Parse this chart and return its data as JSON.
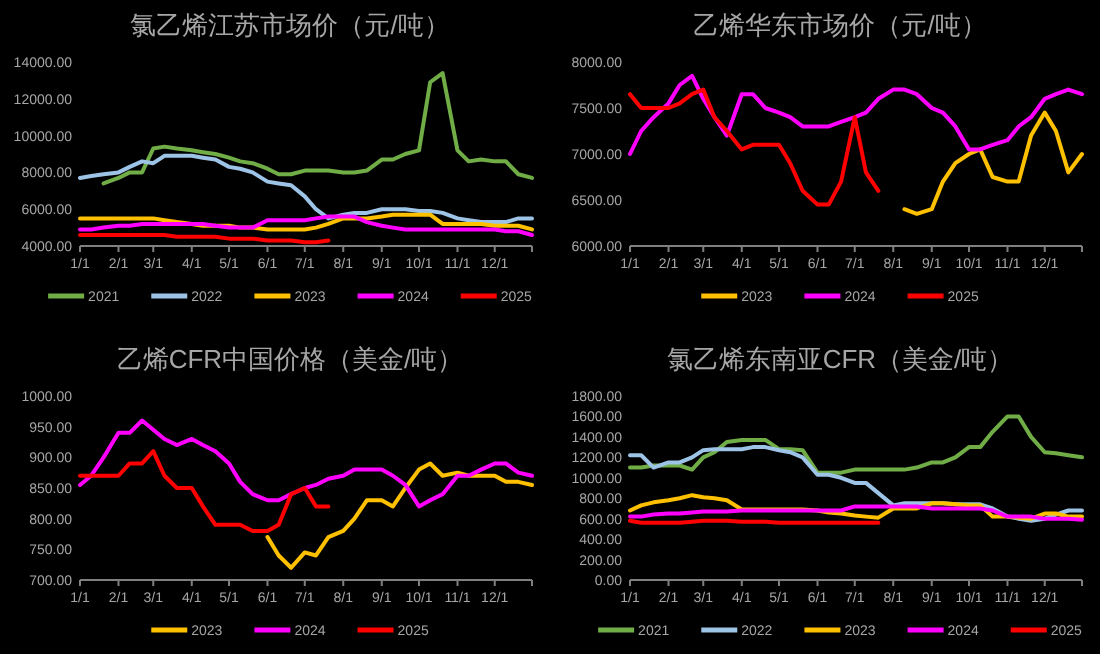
{
  "chart_data": [
    {
      "type": "line",
      "title": "氯乙烯江苏市场价（元/吨）",
      "legend": "bottom",
      "x": [
        "--01-01",
        "--01-10",
        "--01-20",
        "--02-01",
        "--02-10",
        "--02-20",
        "--03-01",
        "--03-10",
        "--03-20",
        "--04-01",
        "--04-10",
        "--04-20",
        "--05-01",
        "--05-10",
        "--05-20",
        "--06-01",
        "--06-10",
        "--06-20",
        "--07-01",
        "--07-10",
        "--07-20",
        "--08-01",
        "--08-10",
        "--08-20",
        "--09-01",
        "--09-10",
        "--09-20",
        "--10-01",
        "--10-10",
        "--10-20",
        "--11-01",
        "--11-10",
        "--11-20",
        "--12-01",
        "--12-10",
        "--12-20",
        "--12-31"
      ],
      "xlim": [
        "--01-01",
        "--12-31"
      ],
      "xticks": [
        {
          "value": "--01-01",
          "label": "1/1"
        },
        {
          "value": "--02-01",
          "label": "2/1"
        },
        {
          "value": "--03-01",
          "label": "3/1"
        },
        {
          "value": "--04-01",
          "label": "4/1"
        },
        {
          "value": "--05-01",
          "label": "5/1"
        },
        {
          "value": "--06-01",
          "label": "6/1"
        },
        {
          "value": "--07-01",
          "label": "7/1"
        },
        {
          "value": "--08-01",
          "label": "8/1"
        },
        {
          "value": "--09-01",
          "label": "9/1"
        },
        {
          "value": "--10-01",
          "label": "10/1"
        },
        {
          "value": "--11-01",
          "label": "11/1"
        },
        {
          "value": "--12-01",
          "label": "12/1"
        }
      ],
      "ylim": [
        4000,
        14000
      ],
      "yticks": [
        {
          "value": 4000,
          "label": "4000.00"
        },
        {
          "value": 6000,
          "label": "6000.00"
        },
        {
          "value": 8000,
          "label": "8000.00"
        },
        {
          "value": 10000,
          "label": "10000.00"
        },
        {
          "value": 12000,
          "label": "12000.00"
        },
        {
          "value": 14000,
          "label": "14000.00"
        }
      ],
      "series": [
        {
          "name": "2021",
          "color": "#70ad47",
          "values": [
            null,
            null,
            7400,
            7700,
            8000,
            8000,
            9300,
            9400,
            9300,
            9200,
            9100,
            9000,
            8800,
            8600,
            8500,
            8200,
            7900,
            7900,
            8100,
            8100,
            8100,
            8000,
            8000,
            8100,
            8700,
            8700,
            9000,
            9200,
            12900,
            13400,
            9200,
            8600,
            8700,
            8600,
            8600,
            7900,
            7700
          ]
        },
        {
          "name": "2022",
          "color": "#9dc3e6",
          "values": [
            7700,
            7800,
            7900,
            8000,
            8300,
            8600,
            8500,
            8900,
            8900,
            8900,
            8800,
            8700,
            8300,
            8200,
            8000,
            7500,
            7400,
            7300,
            6700,
            6000,
            5500,
            5700,
            5800,
            5800,
            6000,
            6000,
            6000,
            5900,
            5900,
            5800,
            5500,
            5400,
            5300,
            5300,
            5300,
            5500,
            5500
          ]
        },
        {
          "name": "2023",
          "color": "#ffc000",
          "values": [
            5500,
            5500,
            5500,
            5500,
            5500,
            5500,
            5500,
            5400,
            5300,
            5200,
            5100,
            5100,
            5100,
            5000,
            5000,
            4900,
            4900,
            4900,
            4900,
            5000,
            5200,
            5500,
            5500,
            5500,
            5600,
            5700,
            5700,
            5700,
            5700,
            5200,
            5200,
            5200,
            5200,
            5100,
            5100,
            5100,
            4900
          ]
        },
        {
          "name": "2024",
          "color": "#ff00ff",
          "values": [
            4900,
            4900,
            5000,
            5100,
            5100,
            5200,
            5200,
            5200,
            5200,
            5200,
            5200,
            5100,
            5000,
            5000,
            5000,
            5400,
            5400,
            5400,
            5400,
            5500,
            5600,
            5600,
            5600,
            5300,
            5100,
            5000,
            4900,
            4900,
            4900,
            4900,
            4900,
            4900,
            4900,
            4900,
            4800,
            4800,
            4600
          ]
        },
        {
          "name": "2025",
          "color": "#ff0000",
          "values": [
            4600,
            4600,
            4600,
            4600,
            4600,
            4600,
            4600,
            4600,
            4500,
            4500,
            4500,
            4500,
            4400,
            4400,
            4400,
            4300,
            4300,
            4300,
            4200,
            4200,
            4300,
            null,
            null,
            null,
            null,
            null,
            null,
            null,
            null,
            null,
            null,
            null,
            null,
            null,
            null,
            null,
            null
          ]
        }
      ]
    },
    {
      "type": "line",
      "title": "乙烯华东市场价（元/吨）",
      "legend": "bottom",
      "x": [
        "--01-01",
        "--01-10",
        "--01-20",
        "--02-01",
        "--02-10",
        "--02-20",
        "--03-01",
        "--03-10",
        "--03-20",
        "--04-01",
        "--04-10",
        "--04-20",
        "--05-01",
        "--05-10",
        "--05-20",
        "--06-01",
        "--06-10",
        "--06-20",
        "--07-01",
        "--07-10",
        "--07-20",
        "--08-01",
        "--08-10",
        "--08-20",
        "--09-01",
        "--09-10",
        "--09-20",
        "--10-01",
        "--10-10",
        "--10-20",
        "--11-01",
        "--11-10",
        "--11-20",
        "--12-01",
        "--12-10",
        "--12-20",
        "--12-31"
      ],
      "xlim": [
        "--01-01",
        "--12-31"
      ],
      "xticks": [
        {
          "value": "--01-01",
          "label": "1/1"
        },
        {
          "value": "--02-01",
          "label": "2/1"
        },
        {
          "value": "--03-01",
          "label": "3/1"
        },
        {
          "value": "--04-01",
          "label": "4/1"
        },
        {
          "value": "--05-01",
          "label": "5/1"
        },
        {
          "value": "--06-01",
          "label": "6/1"
        },
        {
          "value": "--07-01",
          "label": "7/1"
        },
        {
          "value": "--08-01",
          "label": "8/1"
        },
        {
          "value": "--09-01",
          "label": "9/1"
        },
        {
          "value": "--10-01",
          "label": "10/1"
        },
        {
          "value": "--11-01",
          "label": "11/1"
        },
        {
          "value": "--12-01",
          "label": "12/1"
        }
      ],
      "ylim": [
        6000,
        8000
      ],
      "yticks": [
        {
          "value": 6000,
          "label": "6000.00"
        },
        {
          "value": 6500,
          "label": "6500.00"
        },
        {
          "value": 7000,
          "label": "7000.00"
        },
        {
          "value": 7500,
          "label": "7500.00"
        },
        {
          "value": 8000,
          "label": "8000.00"
        }
      ],
      "series": [
        {
          "name": "2023",
          "color": "#ffc000",
          "values": [
            null,
            null,
            null,
            null,
            null,
            null,
            null,
            null,
            null,
            null,
            null,
            null,
            null,
            null,
            null,
            null,
            null,
            null,
            null,
            null,
            null,
            null,
            6400,
            6350,
            6400,
            6700,
            6900,
            7000,
            7050,
            6750,
            6700,
            6700,
            7200,
            7450,
            7250,
            6800,
            7000
          ]
        },
        {
          "name": "2024",
          "color": "#ff00ff",
          "values": [
            7000,
            7250,
            7400,
            7550,
            7750,
            7850,
            7600,
            7400,
            7200,
            7650,
            7650,
            7500,
            7450,
            7400,
            7300,
            7300,
            7300,
            7350,
            7400,
            7450,
            7600,
            7700,
            7700,
            7650,
            7500,
            7450,
            7300,
            7050,
            7050,
            7100,
            7150,
            7300,
            7400,
            7600,
            7650,
            7700,
            7650
          ]
        },
        {
          "name": "2025",
          "color": "#ff0000",
          "values": [
            7650,
            7500,
            7500,
            7500,
            7550,
            7650,
            7700,
            7400,
            7250,
            7050,
            7100,
            7100,
            7100,
            6900,
            6600,
            6450,
            6450,
            6700,
            7400,
            6800,
            6600,
            null,
            null,
            null,
            null,
            null,
            null,
            null,
            null,
            null,
            null,
            null,
            null,
            null,
            null,
            null,
            null
          ]
        }
      ]
    },
    {
      "type": "line",
      "title": "乙烯CFR中国价格（美金/吨）",
      "legend": "bottom",
      "x": [
        "--01-01",
        "--01-10",
        "--01-20",
        "--02-01",
        "--02-10",
        "--02-20",
        "--03-01",
        "--03-10",
        "--03-20",
        "--04-01",
        "--04-10",
        "--04-20",
        "--05-01",
        "--05-10",
        "--05-20",
        "--06-01",
        "--06-10",
        "--06-20",
        "--07-01",
        "--07-10",
        "--07-20",
        "--08-01",
        "--08-10",
        "--08-20",
        "--09-01",
        "--09-10",
        "--09-20",
        "--10-01",
        "--10-10",
        "--10-20",
        "--11-01",
        "--11-10",
        "--11-20",
        "--12-01",
        "--12-10",
        "--12-20",
        "--12-31"
      ],
      "xlim": [
        "--01-01",
        "--12-31"
      ],
      "xticks": [
        {
          "value": "--01-01",
          "label": "1/1"
        },
        {
          "value": "--02-01",
          "label": "2/1"
        },
        {
          "value": "--03-01",
          "label": "3/1"
        },
        {
          "value": "--04-01",
          "label": "4/1"
        },
        {
          "value": "--05-01",
          "label": "5/1"
        },
        {
          "value": "--06-01",
          "label": "6/1"
        },
        {
          "value": "--07-01",
          "label": "7/1"
        },
        {
          "value": "--08-01",
          "label": "8/1"
        },
        {
          "value": "--09-01",
          "label": "9/1"
        },
        {
          "value": "--10-01",
          "label": "10/1"
        },
        {
          "value": "--11-01",
          "label": "11/1"
        },
        {
          "value": "--12-01",
          "label": "12/1"
        }
      ],
      "ylim": [
        700,
        1000
      ],
      "yticks": [
        {
          "value": 700,
          "label": "700.00"
        },
        {
          "value": 750,
          "label": "750.00"
        },
        {
          "value": 800,
          "label": "800.00"
        },
        {
          "value": 850,
          "label": "850.00"
        },
        {
          "value": 900,
          "label": "900.00"
        },
        {
          "value": 950,
          "label": "950.00"
        },
        {
          "value": 1000,
          "label": "1000.00"
        }
      ],
      "series": [
        {
          "name": "2023",
          "color": "#ffc000",
          "values": [
            null,
            null,
            null,
            null,
            null,
            null,
            null,
            null,
            null,
            null,
            null,
            null,
            null,
            null,
            null,
            770,
            740,
            720,
            745,
            740,
            770,
            780,
            800,
            830,
            830,
            820,
            850,
            880,
            890,
            870,
            875,
            870,
            870,
            870,
            860,
            860,
            855
          ]
        },
        {
          "name": "2024",
          "color": "#ff00ff",
          "values": [
            855,
            870,
            900,
            940,
            940,
            960,
            945,
            930,
            920,
            930,
            920,
            910,
            890,
            860,
            840,
            830,
            830,
            840,
            850,
            855,
            865,
            870,
            880,
            880,
            880,
            870,
            855,
            820,
            830,
            840,
            870,
            870,
            880,
            890,
            890,
            875,
            870
          ]
        },
        {
          "name": "2025",
          "color": "#ff0000",
          "values": [
            870,
            870,
            870,
            870,
            890,
            890,
            910,
            870,
            850,
            850,
            820,
            790,
            790,
            790,
            780,
            780,
            790,
            840,
            850,
            820,
            820,
            null,
            null,
            null,
            null,
            null,
            null,
            null,
            null,
            null,
            null,
            null,
            null,
            null,
            null,
            null,
            null
          ]
        }
      ]
    },
    {
      "type": "line",
      "title": "氯乙烯东南亚CFR（美金/吨）",
      "legend": "bottom",
      "x": [
        "--01-01",
        "--01-10",
        "--01-20",
        "--02-01",
        "--02-10",
        "--02-20",
        "--03-01",
        "--03-10",
        "--03-20",
        "--04-01",
        "--04-10",
        "--04-20",
        "--05-01",
        "--05-10",
        "--05-20",
        "--06-01",
        "--06-10",
        "--06-20",
        "--07-01",
        "--07-10",
        "--07-20",
        "--08-01",
        "--08-10",
        "--08-20",
        "--09-01",
        "--09-10",
        "--09-20",
        "--10-01",
        "--10-10",
        "--10-20",
        "--11-01",
        "--11-10",
        "--11-20",
        "--12-01",
        "--12-10",
        "--12-20",
        "--12-31"
      ],
      "xlim": [
        "--01-01",
        "--12-31"
      ],
      "xticks": [
        {
          "value": "--01-01",
          "label": "1/1"
        },
        {
          "value": "--02-01",
          "label": "2/1"
        },
        {
          "value": "--03-01",
          "label": "3/1"
        },
        {
          "value": "--04-01",
          "label": "4/1"
        },
        {
          "value": "--05-01",
          "label": "5/1"
        },
        {
          "value": "--06-01",
          "label": "6/1"
        },
        {
          "value": "--07-01",
          "label": "7/1"
        },
        {
          "value": "--08-01",
          "label": "8/1"
        },
        {
          "value": "--09-01",
          "label": "9/1"
        },
        {
          "value": "--10-01",
          "label": "10/1"
        },
        {
          "value": "--11-01",
          "label": "11/1"
        },
        {
          "value": "--12-01",
          "label": "12/1"
        }
      ],
      "ylim": [
        0,
        1800
      ],
      "yticks": [
        {
          "value": 0,
          "label": "0.00"
        },
        {
          "value": 200,
          "label": "200.00"
        },
        {
          "value": 400,
          "label": "400.00"
        },
        {
          "value": 600,
          "label": "600.00"
        },
        {
          "value": 800,
          "label": "800.00"
        },
        {
          "value": 1000,
          "label": "1000.00"
        },
        {
          "value": 1200,
          "label": "1200.00"
        },
        {
          "value": 1400,
          "label": "1400.00"
        },
        {
          "value": 1600,
          "label": "1600.00"
        },
        {
          "value": 1800,
          "label": "1800.00"
        }
      ],
      "series": [
        {
          "name": "2021",
          "color": "#70ad47",
          "values": [
            1100,
            1100,
            1120,
            1120,
            1120,
            1080,
            1200,
            1250,
            1350,
            1370,
            1370,
            1370,
            1280,
            1280,
            1270,
            1050,
            1050,
            1050,
            1080,
            1080,
            1080,
            1080,
            1080,
            1100,
            1150,
            1150,
            1200,
            1300,
            1300,
            1450,
            1600,
            1600,
            1400,
            1250,
            1240,
            1220,
            1200
          ]
        },
        {
          "name": "2022",
          "color": "#9dc3e6",
          "values": [
            1220,
            1220,
            1100,
            1150,
            1150,
            1200,
            1270,
            1280,
            1280,
            1280,
            1300,
            1300,
            1270,
            1250,
            1200,
            1030,
            1030,
            1000,
            950,
            950,
            850,
            730,
            750,
            750,
            750,
            750,
            740,
            740,
            740,
            700,
            620,
            600,
            580,
            600,
            640,
            680,
            680
          ]
        },
        {
          "name": "2023",
          "color": "#ffc000",
          "values": [
            680,
            730,
            760,
            780,
            800,
            830,
            810,
            800,
            780,
            690,
            690,
            690,
            690,
            690,
            690,
            680,
            660,
            650,
            630,
            620,
            610,
            700,
            700,
            700,
            750,
            750,
            740,
            730,
            730,
            620,
            620,
            610,
            600,
            650,
            650,
            620,
            620
          ]
        },
        {
          "name": "2024",
          "color": "#ff00ff",
          "values": [
            620,
            620,
            640,
            650,
            650,
            660,
            670,
            670,
            670,
            680,
            680,
            680,
            680,
            680,
            680,
            680,
            680,
            680,
            720,
            720,
            720,
            720,
            720,
            720,
            700,
            700,
            700,
            700,
            700,
            680,
            620,
            620,
            620,
            600,
            600,
            600,
            590
          ]
        },
        {
          "name": "2025",
          "color": "#ff0000",
          "values": [
            580,
            560,
            560,
            560,
            560,
            570,
            580,
            580,
            580,
            570,
            570,
            570,
            560,
            560,
            560,
            560,
            560,
            560,
            560,
            560,
            560,
            null,
            null,
            null,
            null,
            null,
            null,
            null,
            null,
            null,
            null,
            null,
            null,
            null,
            null,
            null,
            null
          ]
        }
      ]
    }
  ]
}
